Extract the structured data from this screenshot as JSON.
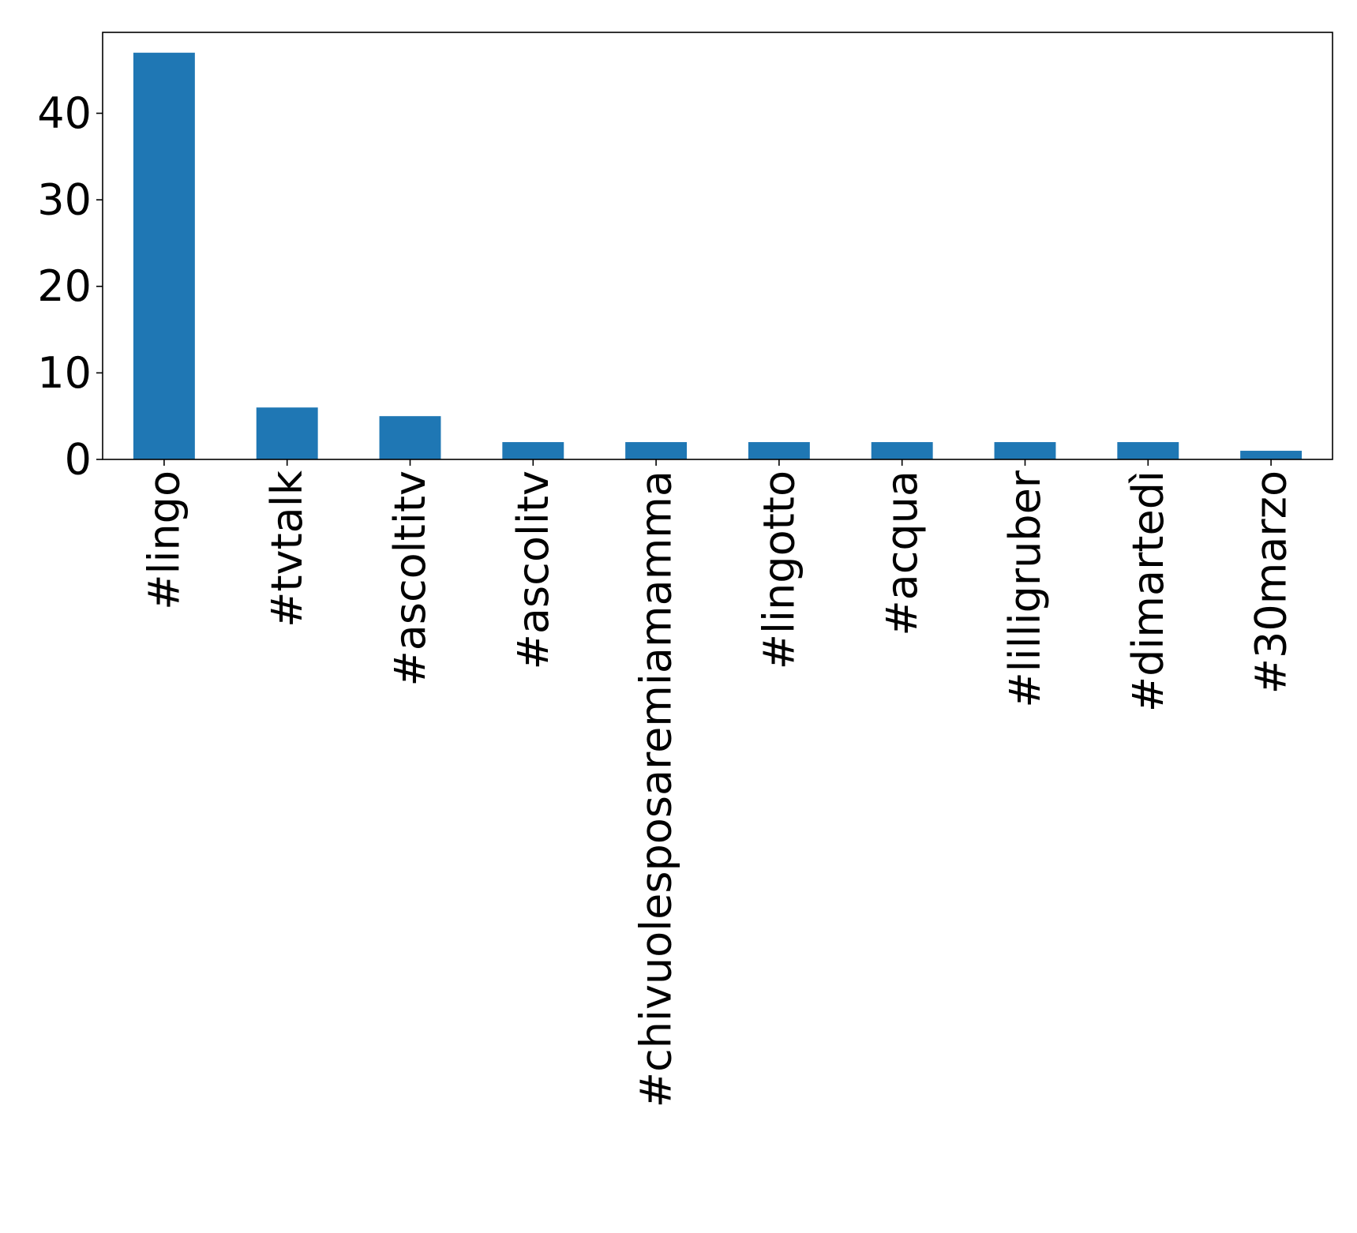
{
  "chart_data": {
    "type": "bar",
    "categories": [
      "#lingo",
      "#tvtalk",
      "#ascoltitv",
      "#ascolitv",
      "#chivuolesposaremiamamma",
      "#lingotto",
      "#acqua",
      "#lilligruber",
      "#dimartedì",
      "#30marzo"
    ],
    "values": [
      47,
      6,
      5,
      2,
      2,
      2,
      2,
      2,
      2,
      1
    ],
    "title": "",
    "xlabel": "",
    "ylabel": "",
    "ylim": [
      0,
      49.35
    ],
    "yticks": [
      0,
      10,
      20,
      30,
      40
    ],
    "grid": false,
    "bar_color": "#1f77b4"
  }
}
